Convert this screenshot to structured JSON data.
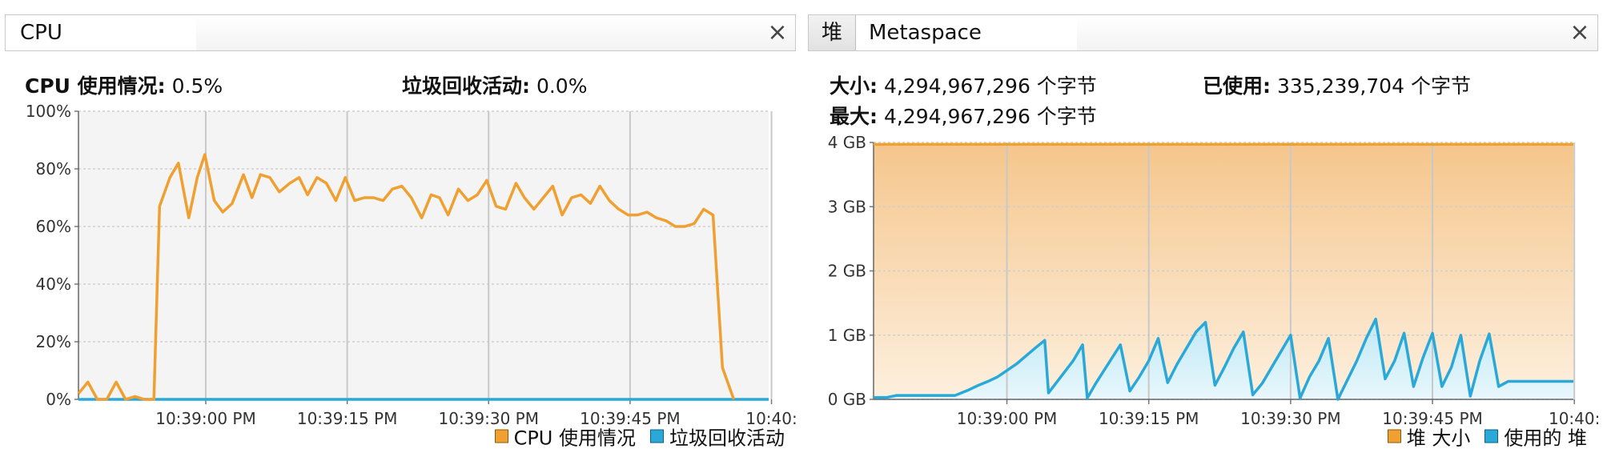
{
  "cpu_panel": {
    "tab_label": "CPU",
    "close_glyph": "×",
    "usage_label": "CPU 使用情况:",
    "usage_value": "0.5%",
    "gc_label": "垃圾回收活动:",
    "gc_value": "0.0%",
    "legend": [
      {
        "label": "CPU 使用情况",
        "color": "#f0a030"
      },
      {
        "label": "垃圾回收活动",
        "color": "#2aa8d8"
      }
    ]
  },
  "heap_panel": {
    "tabs": [
      "堆",
      "Metaspace"
    ],
    "close_glyph": "×",
    "size_label": "大小:",
    "size_value": "4,294,967,296 个字节",
    "max_label": "最大:",
    "max_value": "4,294,967,296 个字节",
    "used_label": "已使用:",
    "used_value": "335,239,704 个字节",
    "legend": [
      {
        "label": "堆 大小",
        "color": "#f0a030"
      },
      {
        "label": "使用的 堆",
        "color": "#2aa8d8"
      }
    ]
  },
  "chart_data": [
    {
      "type": "line",
      "y_ticks": [
        "0%",
        "20%",
        "40%",
        "60%",
        "80%",
        "100%"
      ],
      "ylim": [
        0,
        100
      ],
      "x_ticks": [
        "10:39:00 PM",
        "10:39:15 PM",
        "10:39:30 PM",
        "10:39:45 PM",
        "10:40:"
      ],
      "x_tick_seconds": [
        0,
        15,
        30,
        45,
        60
      ],
      "xlim_seconds": [
        -13.5,
        59.7
      ],
      "series": [
        {
          "name": "CPU 使用情况",
          "color": "#f0a030",
          "t": [
            -13.5,
            -12.5,
            -11.5,
            -10.5,
            -9.5,
            -8.5,
            -7.5,
            -6.5,
            -5.5,
            -4.9,
            -3.8,
            -2.9,
            -1.8,
            -0.9,
            -0.1,
            0.9,
            1.8,
            2.8,
            4.0,
            4.9,
            5.8,
            6.8,
            7.8,
            8.9,
            9.9,
            10.8,
            11.8,
            12.8,
            13.8,
            14.8,
            15.8,
            16.8,
            17.8,
            18.8,
            19.8,
            20.8,
            21.8,
            22.9,
            23.9,
            24.8,
            25.7,
            26.8,
            27.8,
            28.8,
            29.8,
            30.8,
            31.8,
            32.9,
            33.8,
            34.8,
            35.8,
            36.8,
            37.8,
            38.8,
            39.8,
            40.8,
            41.8,
            42.8,
            43.8,
            44.8,
            45.8,
            46.8,
            47.8,
            48.8,
            49.8,
            50.8,
            51.8,
            52.8,
            53.8,
            54.8,
            56.0
          ],
          "values": [
            2,
            6,
            0,
            0,
            6,
            0,
            1,
            0,
            0,
            67,
            77,
            82,
            63,
            77,
            85,
            69,
            65,
            68,
            78,
            70,
            78,
            77,
            72,
            75,
            77,
            71,
            77,
            75,
            69,
            77,
            69,
            70,
            70,
            69,
            73,
            74,
            70,
            63,
            71,
            70,
            64,
            73,
            69,
            71,
            76,
            67,
            66,
            75,
            70,
            66,
            70,
            74,
            64,
            70,
            71,
            68,
            74,
            69,
            66,
            64,
            64,
            65,
            63,
            62,
            60,
            60,
            61,
            66,
            64,
            11,
            0
          ]
        },
        {
          "name": "垃圾回收活动",
          "color": "#2aa8d8",
          "t": [
            -13.5,
            59.7
          ],
          "values": [
            0,
            0
          ]
        }
      ]
    },
    {
      "type": "area",
      "y_ticks": [
        "0 GB",
        "1 GB",
        "2 GB",
        "3 GB",
        "4 GB"
      ],
      "ylim": [
        0,
        4
      ],
      "x_ticks": [
        "10:39:00 PM",
        "10:39:15 PM",
        "10:39:30 PM",
        "10:39:45 PM",
        "10:40:"
      ],
      "x_tick_seconds": [
        0,
        15,
        30,
        45,
        60
      ],
      "xlim_seconds": [
        -14.1,
        59.9
      ],
      "series": [
        {
          "name": "堆 大小",
          "color": "#f0a030",
          "t": [
            -14.1,
            59.9
          ],
          "values": [
            3.97,
            3.97
          ]
        },
        {
          "name": "使用的 堆",
          "color": "#2aa8d8",
          "t": [
            -14.1,
            -12.7,
            -11.7,
            -10.7,
            -9.0,
            -6.0,
            -5.5,
            -4.0,
            -3.0,
            -2.0,
            -1.0,
            0.0,
            1.0,
            3.0,
            4.0,
            4.4,
            7.0,
            8.0,
            8.5,
            9.4,
            12.0,
            13.0,
            14.0,
            15.0,
            16.0,
            17.0,
            18.0,
            19.0,
            20.0,
            21.0,
            22.0,
            23.0,
            24.0,
            25.0,
            26.0,
            27.0,
            28.0,
            29.0,
            30.0,
            31.0,
            32.0,
            33.0,
            34.0,
            35.0,
            36.0,
            37.0,
            38.0,
            39.0,
            40.0,
            41.0,
            42.0,
            43.0,
            44.0,
            45.0,
            46.0,
            47.0,
            48.0,
            49.0,
            50.0,
            51.0,
            52.0,
            53.0,
            54.0,
            55.0,
            56.0,
            57.0,
            59.9
          ],
          "values": [
            0.03,
            0.03,
            0.06,
            0.06,
            0.06,
            0.06,
            0.06,
            0.15,
            0.22,
            0.28,
            0.35,
            0.45,
            0.55,
            0.8,
            0.92,
            0.1,
            0.6,
            0.85,
            0.02,
            0.25,
            0.85,
            0.13,
            0.35,
            0.6,
            0.95,
            0.26,
            0.55,
            0.8,
            1.05,
            1.2,
            0.22,
            0.5,
            0.8,
            1.05,
            0.07,
            0.25,
            0.5,
            0.75,
            1.0,
            0.02,
            0.35,
            0.6,
            0.95,
            0.0,
            0.3,
            0.6,
            0.95,
            1.25,
            0.32,
            0.6,
            1.03,
            0.2,
            0.65,
            1.03,
            0.2,
            0.5,
            1.0,
            0.05,
            0.6,
            1.02,
            0.2,
            0.28,
            0.28,
            0.28,
            0.28,
            0.28,
            0.28
          ]
        }
      ]
    }
  ]
}
